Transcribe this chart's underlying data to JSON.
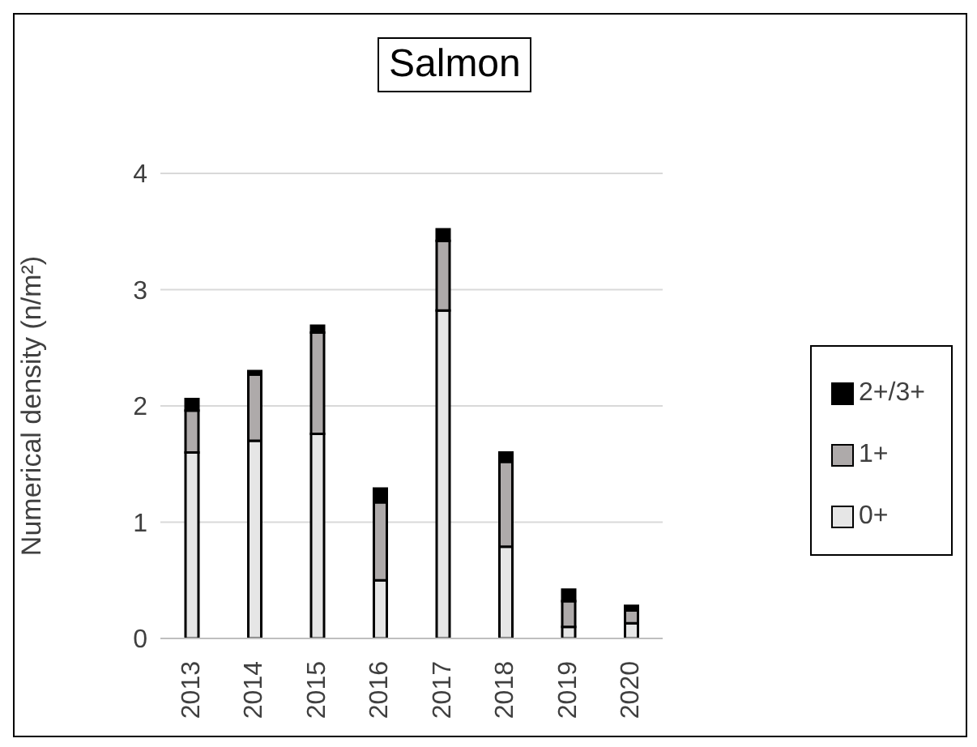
{
  "chart_data": {
    "type": "bar",
    "title": "Salmon",
    "ylabel": "Numerical density (n/m²)",
    "categories": [
      "2013",
      "2014",
      "2015",
      "2016",
      "2017",
      "2018",
      "2019",
      "2020"
    ],
    "stacked": true,
    "series": [
      {
        "name": "0+",
        "color": "#e6e6e6",
        "values": [
          1.6,
          1.7,
          1.76,
          0.5,
          2.82,
          0.79,
          0.1,
          0.13
        ]
      },
      {
        "name": "1+",
        "color": "#aeaaaa",
        "values": [
          0.36,
          0.57,
          0.87,
          0.67,
          0.6,
          0.73,
          0.22,
          0.11
        ]
      },
      {
        "name": "2+/3+",
        "color": "#000000",
        "values": [
          0.1,
          0.03,
          0.06,
          0.12,
          0.1,
          0.08,
          0.1,
          0.04
        ]
      }
    ],
    "ylim": [
      0,
      4
    ],
    "yticks": [
      0,
      1,
      2,
      3,
      4
    ],
    "grid": "y",
    "legend": "right"
  }
}
